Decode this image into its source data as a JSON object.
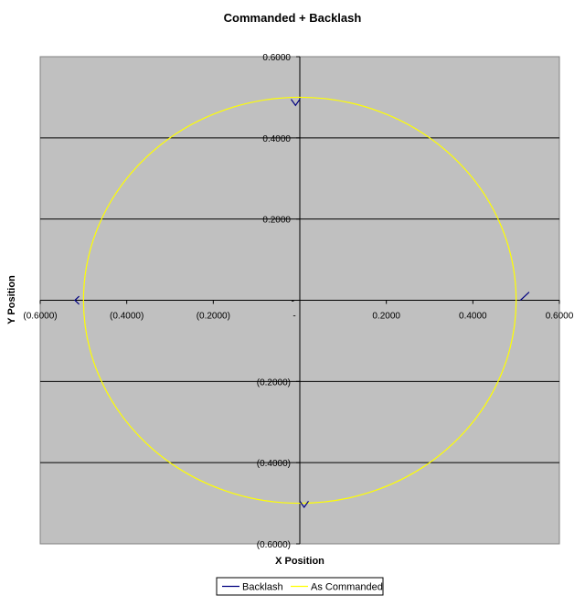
{
  "chart_data": {
    "type": "scatter",
    "title": "Commanded + Backlash",
    "xlabel": "X Position",
    "ylabel": "Y Position",
    "xlim": [
      -0.6,
      0.6
    ],
    "ylim": [
      -0.6,
      0.6
    ],
    "x_ticks": [
      {
        "value": -0.6,
        "label": "(0.6000)"
      },
      {
        "value": -0.4,
        "label": "(0.4000)"
      },
      {
        "value": -0.2,
        "label": "(0.2000)"
      },
      {
        "value": 0,
        "label": "-"
      },
      {
        "value": 0.2,
        "label": "0.2000"
      },
      {
        "value": 0.4,
        "label": "0.4000"
      },
      {
        "value": 0.6,
        "label": "0.6000"
      }
    ],
    "y_ticks": [
      {
        "value": 0.6,
        "label": "0.6000"
      },
      {
        "value": 0.4,
        "label": "0.4000"
      },
      {
        "value": 0.2,
        "label": "0.2000"
      },
      {
        "value": 0,
        "label": "-"
      },
      {
        "value": -0.2,
        "label": "(0.2000)"
      },
      {
        "value": -0.4,
        "label": "(0.4000)"
      },
      {
        "value": -0.6,
        "label": "(0.6000)"
      }
    ],
    "grid": "horizontal major gridlines",
    "plot_background": "#c0c0c0",
    "legend_position": "bottom",
    "series": [
      {
        "name": "Backlash",
        "color": "#000080",
        "segments": [
          [
            [
              -0.02,
              0.495
            ],
            [
              -0.01,
              0.48
            ],
            [
              0.0,
              0.495
            ]
          ],
          [
            [
              0.0,
              -0.495
            ],
            [
              0.01,
              -0.51
            ],
            [
              0.02,
              -0.495
            ]
          ],
          [
            [
              -0.51,
              0.01
            ],
            [
              -0.52,
              0.0
            ],
            [
              -0.51,
              -0.01
            ]
          ],
          [
            [
              0.51,
              0.0
            ],
            [
              0.52,
              0.01
            ],
            [
              0.53,
              0.02
            ]
          ]
        ]
      },
      {
        "name": "As Commanded",
        "color": "#ffff00",
        "shape": "circle",
        "center": [
          0,
          0
        ],
        "radius": 0.5
      }
    ]
  }
}
